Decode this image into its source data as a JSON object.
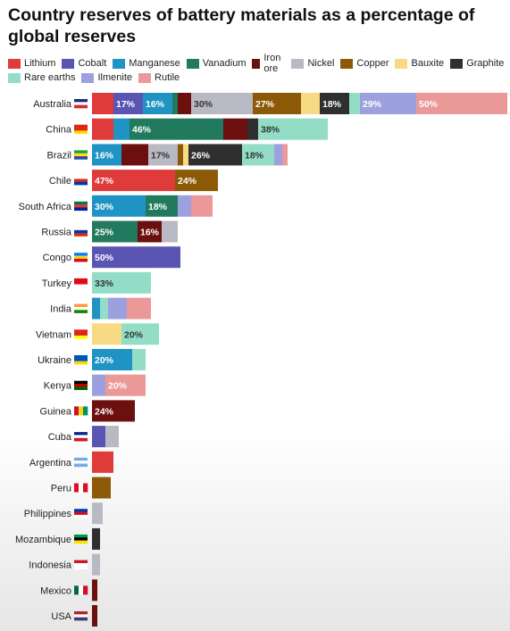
{
  "chart_data": {
    "type": "bar",
    "stacked": true,
    "orientation": "horizontal",
    "title": "Country reserves of battery materials as a percentage of global reserves",
    "materials": [
      {
        "name": "Lithium",
        "color": "#e03b3b"
      },
      {
        "name": "Cobalt",
        "color": "#5a55b3"
      },
      {
        "name": "Manganese",
        "color": "#1f93c4"
      },
      {
        "name": "Vanadium",
        "color": "#227a5e"
      },
      {
        "name": "Iron ore",
        "color": "#6b0f0f"
      },
      {
        "name": "Nickel",
        "color": "#b9b9c3"
      },
      {
        "name": "Copper",
        "color": "#8c5a06"
      },
      {
        "name": "Bauxite",
        "color": "#f8d984"
      },
      {
        "name": "Graphite",
        "color": "#2f2f2f"
      },
      {
        "name": "Rare earths",
        "color": "#93ddc7"
      },
      {
        "name": "Ilmenite",
        "color": "#9da0de"
      },
      {
        "name": "Rutile",
        "color": "#eb9898"
      }
    ],
    "countries": [
      {
        "name": "Australia",
        "segments": [
          [
            "Lithium",
            8,
            ""
          ],
          [
            "Cobalt",
            11,
            "17%"
          ],
          [
            "Manganese",
            11,
            "16%"
          ],
          [
            "Vanadium",
            2,
            ""
          ],
          [
            "Iron ore",
            5,
            ""
          ],
          [
            "Nickel",
            23,
            "30%"
          ],
          [
            "Copper",
            18,
            "27%"
          ],
          [
            "Bauxite",
            7,
            ""
          ],
          [
            "Graphite",
            11,
            "18%"
          ],
          [
            "Rare earths",
            4,
            ""
          ],
          [
            "Ilmenite",
            21,
            "29%"
          ],
          [
            "Rutile",
            34,
            "50%"
          ]
        ]
      },
      {
        "name": "China",
        "segments": [
          [
            "Lithium",
            8,
            ""
          ],
          [
            "Manganese",
            6,
            ""
          ],
          [
            "Vanadium",
            35,
            "46%"
          ],
          [
            "Iron ore",
            9,
            ""
          ],
          [
            "Graphite",
            4,
            ""
          ],
          [
            "Rare earths",
            26,
            "38%"
          ]
        ]
      },
      {
        "name": "Brazil",
        "segments": [
          [
            "Manganese",
            11,
            "16%"
          ],
          [
            "Iron ore",
            10,
            ""
          ],
          [
            "Nickel",
            11,
            "17%"
          ],
          [
            "Copper",
            2,
            ""
          ],
          [
            "Bauxite",
            2,
            ""
          ],
          [
            "Graphite",
            20,
            "26%"
          ],
          [
            "Rare earths",
            12,
            "18%"
          ],
          [
            "Ilmenite",
            3,
            ""
          ],
          [
            "Rutile",
            2,
            ""
          ]
        ]
      },
      {
        "name": "Chile",
        "segments": [
          [
            "Lithium",
            31,
            "47%"
          ],
          [
            "Copper",
            16,
            "24%"
          ]
        ]
      },
      {
        "name": "South Africa",
        "segments": [
          [
            "Manganese",
            20,
            "30%"
          ],
          [
            "Vanadium",
            12,
            "18%"
          ],
          [
            "Ilmenite",
            5,
            ""
          ],
          [
            "Rutile",
            8,
            ""
          ]
        ]
      },
      {
        "name": "Russia",
        "segments": [
          [
            "Vanadium",
            17,
            "25%"
          ],
          [
            "Iron ore",
            9,
            "16%"
          ],
          [
            "Nickel",
            6,
            ""
          ]
        ]
      },
      {
        "name": "Congo",
        "segments": [
          [
            "Cobalt",
            33,
            "50%"
          ]
        ]
      },
      {
        "name": "Turkey",
        "segments": [
          [
            "Rare earths",
            22,
            "33%"
          ]
        ]
      },
      {
        "name": "India",
        "segments": [
          [
            "Manganese",
            3,
            ""
          ],
          [
            "Rare earths",
            3,
            ""
          ],
          [
            "Ilmenite",
            7,
            ""
          ],
          [
            "Rutile",
            9,
            ""
          ]
        ]
      },
      {
        "name": "Vietnam",
        "segments": [
          [
            "Bauxite",
            11,
            ""
          ],
          [
            "Rare earths",
            14,
            "20%"
          ]
        ]
      },
      {
        "name": "Ukraine",
        "segments": [
          [
            "Manganese",
            15,
            "20%"
          ],
          [
            "Rare earths",
            5,
            ""
          ]
        ]
      },
      {
        "name": "Kenya",
        "segments": [
          [
            "Ilmenite",
            5,
            ""
          ],
          [
            "Rutile",
            15,
            "20%"
          ]
        ]
      },
      {
        "name": "Guinea",
        "segments": [
          [
            "Iron ore",
            16,
            "24%"
          ]
        ]
      },
      {
        "name": "Cuba",
        "segments": [
          [
            "Cobalt",
            5,
            ""
          ],
          [
            "Nickel",
            5,
            ""
          ]
        ]
      },
      {
        "name": "Argentina",
        "segments": [
          [
            "Lithium",
            8,
            ""
          ]
        ]
      },
      {
        "name": "Peru",
        "segments": [
          [
            "Copper",
            7,
            ""
          ]
        ]
      },
      {
        "name": "Philippines",
        "segments": [
          [
            "Nickel",
            4,
            ""
          ]
        ]
      },
      {
        "name": "Mozambique",
        "segments": [
          [
            "Graphite",
            3,
            ""
          ]
        ]
      },
      {
        "name": "Indonesia",
        "segments": [
          [
            "Nickel",
            3,
            ""
          ]
        ]
      },
      {
        "name": "Mexico",
        "segments": [
          [
            "Iron ore",
            2,
            ""
          ]
        ]
      },
      {
        "name": "USA",
        "segments": [
          [
            "Iron ore",
            2,
            ""
          ]
        ]
      }
    ]
  }
}
